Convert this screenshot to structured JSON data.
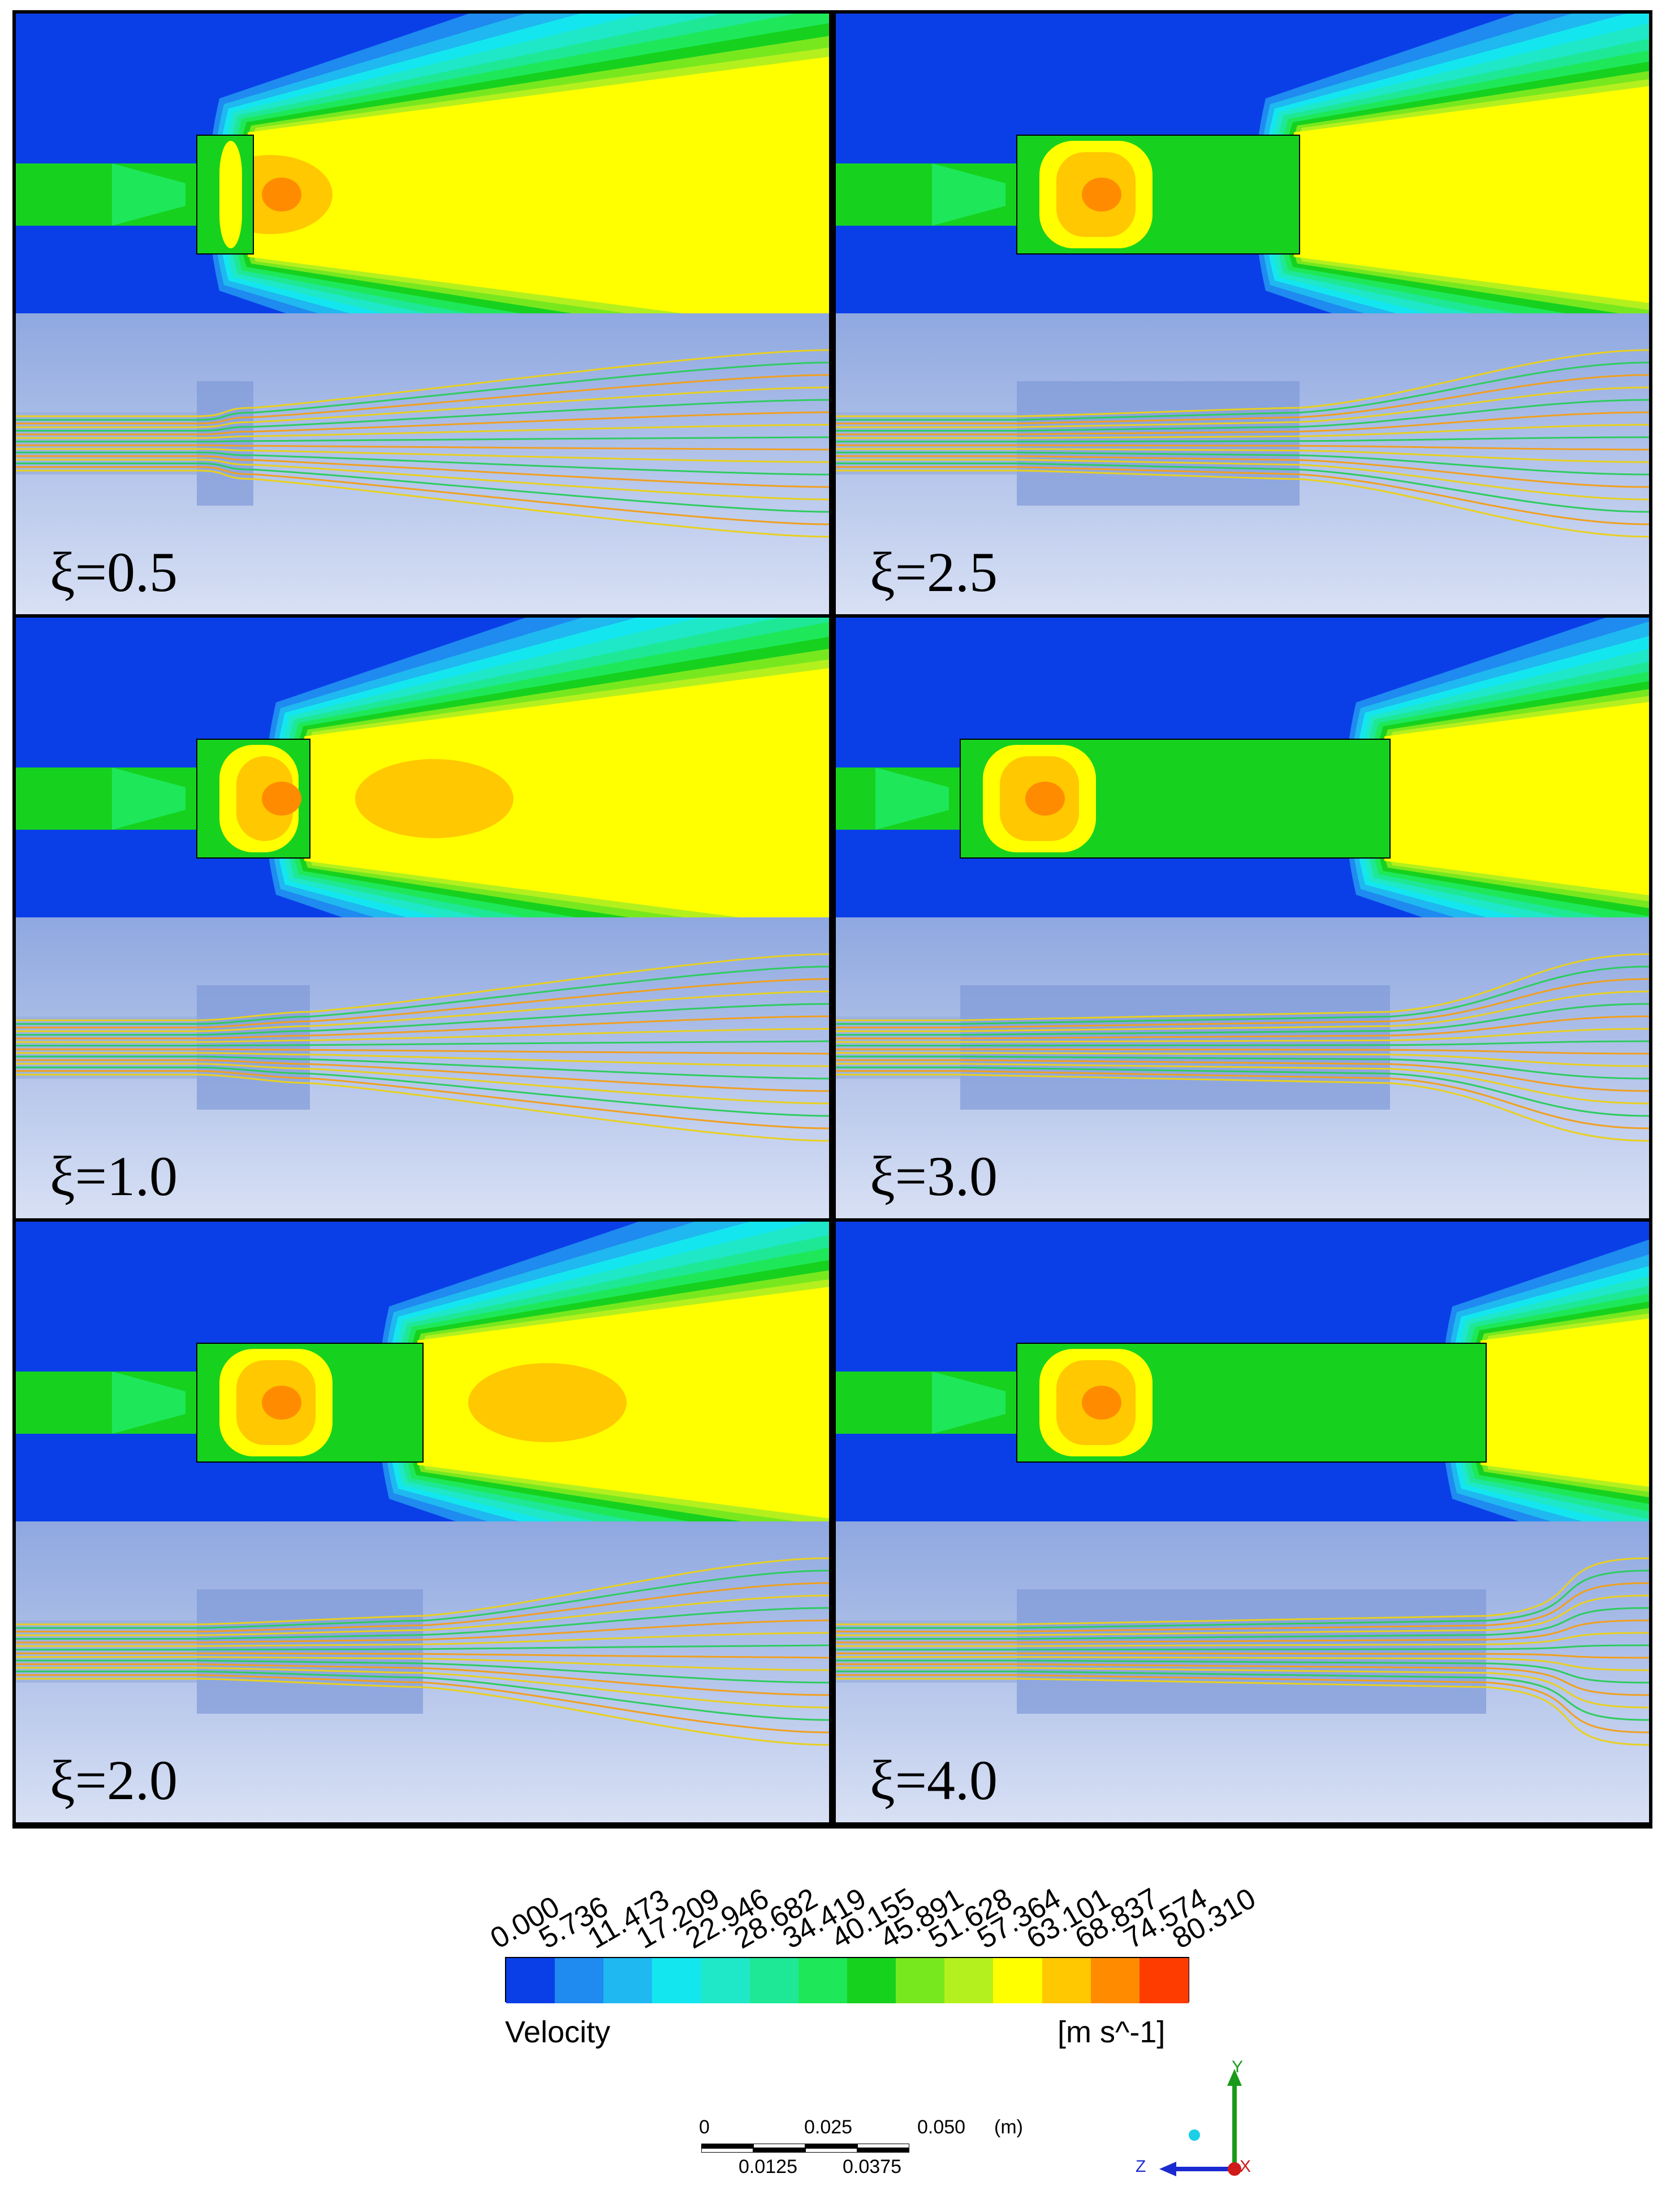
{
  "panels": [
    {
      "label": "ξ=0.5"
    },
    {
      "label": "ξ=2.5"
    },
    {
      "label": "ξ=1.0"
    },
    {
      "label": "ξ=3.0"
    },
    {
      "label": "ξ=2.0"
    },
    {
      "label": "ξ=4.0"
    }
  ],
  "colorbar": {
    "ticks": [
      "0.000",
      "5.736",
      "11.473",
      "17.209",
      "22.946",
      "28.682",
      "34.419",
      "40.155",
      "45.891",
      "51.628",
      "57.364",
      "63.101",
      "68.837",
      "74.574",
      "80.310"
    ],
    "colors": [
      "#0a3fe8",
      "#1f8af0",
      "#1fb8f0",
      "#14e6f0",
      "#1ee8c8",
      "#1ee896",
      "#1ee85a",
      "#16d21e",
      "#78e81e",
      "#b4f01e",
      "#ffff00",
      "#ffc800",
      "#ff8c00",
      "#ff3c00"
    ],
    "variable": "Velocity",
    "unit": "[m s^-1]"
  },
  "scale_bar": {
    "top_labels": [
      "0",
      "0.025",
      "0.050",
      "(m)"
    ],
    "bottom_labels": [
      "0.0125",
      "0.0375"
    ]
  },
  "axes_triad": {
    "y": "Y",
    "z": "Z",
    "x": "X"
  }
}
